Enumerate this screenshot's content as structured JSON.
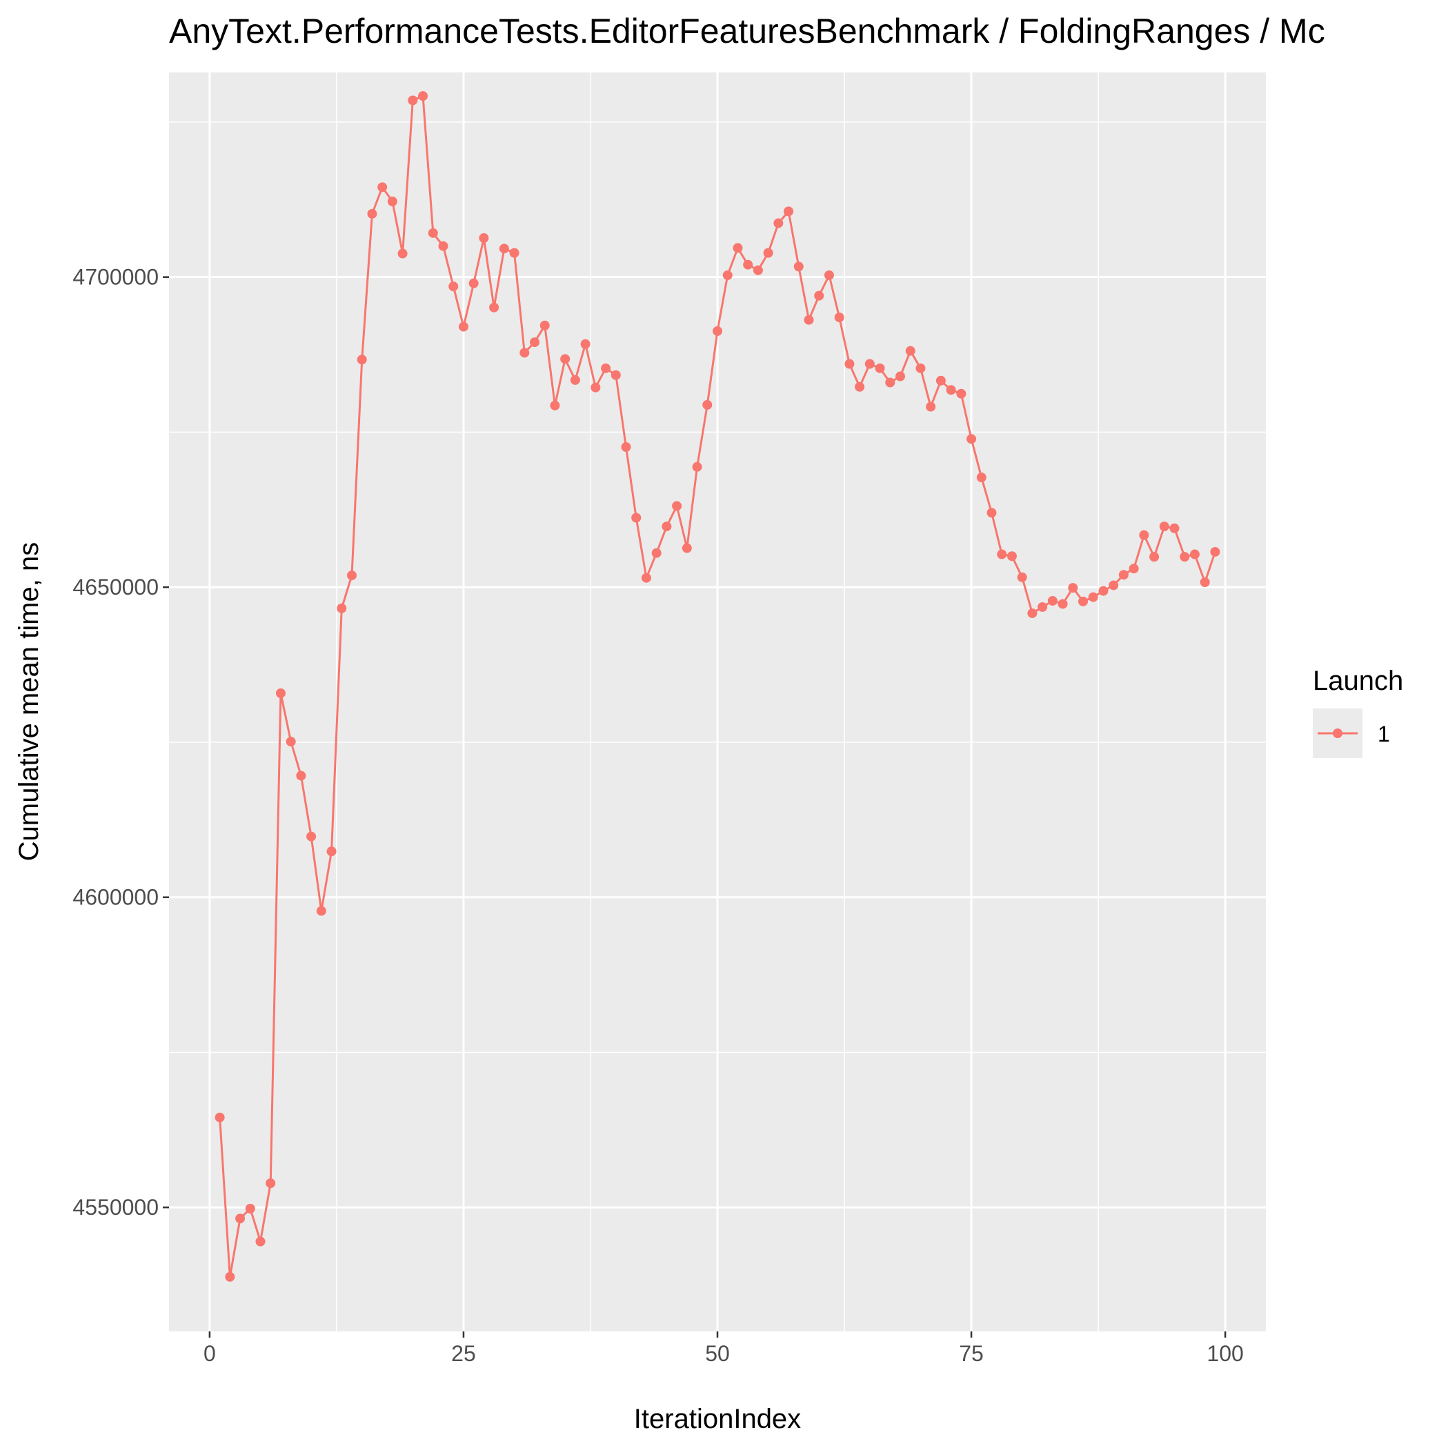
{
  "chart_data": {
    "type": "line",
    "title": "AnyText.PerformanceTests.EditorFeaturesBenchmark / FoldingRanges / Mc",
    "xlabel": "IterationIndex",
    "ylabel": "Cumulative mean time, ns",
    "xlim": [
      -4,
      104
    ],
    "ylim": [
      4530000,
      4733000
    ],
    "x_ticks": [
      0,
      25,
      50,
      75,
      100
    ],
    "x_tick_labels": [
      "0",
      "25",
      "50",
      "75",
      "100"
    ],
    "y_ticks": [
      4550000,
      4600000,
      4650000,
      4700000
    ],
    "y_tick_labels": [
      "4550000",
      "4600000",
      "4650000",
      "4700000"
    ],
    "grid": true,
    "legend": {
      "title": "Launch",
      "position": "right"
    },
    "series": [
      {
        "name": "1",
        "color": "#F8766D",
        "x": [
          1,
          2,
          3,
          4,
          5,
          6,
          7,
          8,
          9,
          10,
          11,
          12,
          13,
          14,
          15,
          16,
          17,
          18,
          19,
          20,
          21,
          22,
          23,
          24,
          25,
          26,
          27,
          28,
          29,
          30,
          31,
          32,
          33,
          34,
          35,
          36,
          37,
          38,
          39,
          40,
          41,
          42,
          43,
          44,
          45,
          46,
          47,
          48,
          49,
          50,
          51,
          52,
          53,
          54,
          55,
          56,
          57,
          58,
          59,
          60,
          61,
          62,
          63,
          64,
          65,
          66,
          67,
          68,
          69,
          70,
          71,
          72,
          73,
          74,
          75,
          76,
          77,
          78,
          79,
          80,
          81,
          82,
          83,
          84,
          85,
          86,
          87,
          88,
          89,
          90,
          91,
          92,
          93,
          94,
          95,
          96,
          97,
          98,
          99
        ],
        "y": [
          4564500,
          4538800,
          4548200,
          4549800,
          4544500,
          4553900,
          4632900,
          4625100,
          4619600,
          4609800,
          4597800,
          4607400,
          4646600,
          4651900,
          4686700,
          4710200,
          4714500,
          4712200,
          4703800,
          4728500,
          4729200,
          4707100,
          4705000,
          4698500,
          4692000,
          4699000,
          4706300,
          4695100,
          4704600,
          4703900,
          4687800,
          4689500,
          4692200,
          4679300,
          4686800,
          4683400,
          4689200,
          4682200,
          4685300,
          4684200,
          4672600,
          4661200,
          4651500,
          4655500,
          4659800,
          4663100,
          4656300,
          4669400,
          4679400,
          4691300,
          4700300,
          4704700,
          4702000,
          4701100,
          4703900,
          4708700,
          4710600,
          4701700,
          4693100,
          4697000,
          4700300,
          4693500,
          4686000,
          4682300,
          4686000,
          4685300,
          4683000,
          4684000,
          4688100,
          4685300,
          4679100,
          4683300,
          4681800,
          4681200,
          4673900,
          4667700,
          4662000,
          4655300,
          4655000,
          4651600,
          4645800,
          4646800,
          4647800,
          4647300,
          4649900,
          4647700,
          4648400,
          4649400,
          4650300,
          4652000,
          4653000,
          4658400,
          4654900,
          4659800,
          4659500,
          4654900,
          4655300,
          4650800,
          4655700
        ]
      }
    ]
  }
}
